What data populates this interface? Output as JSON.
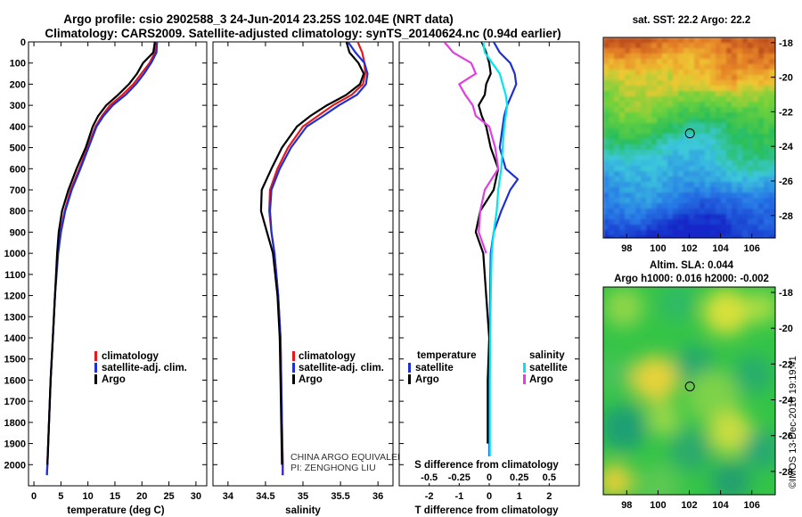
{
  "header": {
    "line1": "Argo profile: csio 2902588_3 24-Jun-2014 23.25S 102.04E (NRT data)",
    "line2": "Climatology: CARS2009. Satellite-adjusted climatology: synTS_20140624.nc (0.94d earlier)"
  },
  "colors": {
    "climatology": "#e31a1c",
    "satellite": "#1f2fd6",
    "argo": "#000000",
    "salinity_sat": "#00e5ee",
    "salinity_argo": "#e040e0"
  },
  "chart_data": [
    {
      "type": "line",
      "name": "temperature",
      "xlabel": "temperature (deg C)",
      "ylabel": "",
      "xlim": [
        -1,
        32
      ],
      "ylim": [
        2100,
        0
      ],
      "xticks": [
        0,
        5,
        10,
        15,
        20,
        25,
        30
      ],
      "yticks": [
        0,
        100,
        200,
        300,
        400,
        500,
        600,
        700,
        800,
        900,
        1000,
        1100,
        1200,
        1300,
        1400,
        1500,
        1600,
        1700,
        1800,
        1900,
        2000
      ],
      "legend": [
        "climatology",
        "satellite-adj. clim.",
        "Argo"
      ],
      "legend_position": "lower-left",
      "series": [
        {
          "name": "climatology",
          "color": "#e31a1c",
          "depth": [
            0,
            50,
            100,
            150,
            200,
            250,
            300,
            350,
            400,
            500,
            600,
            700,
            800,
            900,
            1000,
            1200,
            1400,
            1600,
            1800,
            2000,
            2050
          ],
          "values": [
            22.6,
            22.4,
            21.4,
            19.9,
            18.4,
            16.4,
            14.1,
            12.6,
            11.4,
            9.9,
            8.4,
            6.8,
            5.7,
            4.9,
            4.4,
            3.9,
            3.5,
            3.1,
            2.8,
            2.5,
            2.4
          ]
        },
        {
          "name": "satellite-adj. clim.",
          "color": "#1f2fd6",
          "depth": [
            0,
            50,
            100,
            150,
            200,
            250,
            300,
            350,
            400,
            500,
            600,
            700,
            800,
            900,
            1000,
            1200,
            1400,
            1600,
            1800,
            2000,
            2050
          ],
          "values": [
            22.8,
            22.7,
            21.7,
            20.4,
            18.9,
            17.0,
            14.6,
            12.9,
            11.6,
            10.1,
            8.6,
            7.0,
            5.8,
            5.0,
            4.5,
            3.9,
            3.5,
            3.1,
            2.8,
            2.5,
            2.4
          ]
        },
        {
          "name": "Argo",
          "color": "#000000",
          "depth": [
            0,
            50,
            100,
            150,
            200,
            250,
            300,
            350,
            400,
            500,
            600,
            700,
            800,
            900,
            1000,
            1200,
            1400,
            1600,
            1800,
            2000
          ],
          "values": [
            22.4,
            22.1,
            20.2,
            19.1,
            17.6,
            15.6,
            13.4,
            11.9,
            10.9,
            9.6,
            7.9,
            6.4,
            5.2,
            4.6,
            4.3,
            3.9,
            3.5,
            3.1,
            2.8,
            2.5
          ]
        }
      ]
    },
    {
      "type": "line",
      "name": "salinity",
      "xlabel": "salinity",
      "xlim": [
        33.8,
        36.2
      ],
      "ylim": [
        2100,
        0
      ],
      "xticks": [
        34,
        34.5,
        35,
        35.5,
        36
      ],
      "legend": [
        "climatology",
        "satellite-adj. clim.",
        "Argo"
      ],
      "legend_position": "lower-right",
      "series": [
        {
          "name": "climatology",
          "color": "#e31a1c",
          "depth": [
            0,
            50,
            100,
            150,
            200,
            250,
            300,
            350,
            400,
            500,
            600,
            700,
            800,
            900,
            1000,
            1200,
            1400,
            1600,
            1800,
            2000,
            2050
          ],
          "values": [
            35.73,
            35.79,
            35.82,
            35.83,
            35.8,
            35.65,
            35.4,
            35.2,
            35.0,
            34.8,
            34.66,
            34.56,
            34.55,
            34.58,
            34.62,
            34.67,
            34.7,
            34.71,
            34.72,
            34.73,
            34.73
          ]
        },
        {
          "name": "satellite-adj. clim.",
          "color": "#1f2fd6",
          "depth": [
            0,
            50,
            100,
            150,
            200,
            250,
            300,
            350,
            400,
            500,
            600,
            700,
            800,
            900,
            1000,
            1200,
            1400,
            1600,
            1800,
            2000,
            2050
          ],
          "values": [
            35.6,
            35.7,
            35.82,
            35.86,
            35.84,
            35.72,
            35.48,
            35.27,
            35.05,
            34.84,
            34.69,
            34.58,
            34.56,
            34.58,
            34.62,
            34.67,
            34.7,
            34.71,
            34.72,
            34.73,
            34.73
          ]
        },
        {
          "name": "Argo",
          "color": "#000000",
          "depth": [
            0,
            50,
            100,
            150,
            200,
            250,
            300,
            350,
            400,
            500,
            600,
            700,
            800,
            900,
            1000,
            1200,
            1400,
            1600,
            1800,
            2000
          ],
          "values": [
            35.58,
            35.62,
            35.74,
            35.81,
            35.76,
            35.58,
            35.32,
            35.1,
            34.92,
            34.72,
            34.58,
            34.45,
            34.44,
            34.52,
            34.6,
            34.66,
            34.69,
            34.7,
            34.71,
            34.72
          ]
        }
      ]
    },
    {
      "type": "line",
      "name": "difference",
      "xlabel": "T difference from climatology",
      "xlabel_top": "S difference from climatology",
      "xlim": [
        -3,
        3
      ],
      "ylim": [
        2100,
        0
      ],
      "xticks": [
        -2,
        -1,
        0,
        1,
        2
      ],
      "xtick_labels_top": [
        "-0.5",
        "-0.25",
        "0",
        "0.25",
        "0.5"
      ],
      "legend_temperature_title": "temperature",
      "legend_salinity_title": "salinity",
      "legend_temperature": [
        "satellite",
        "Argo"
      ],
      "legend_salinity": [
        "satellite",
        "Argo"
      ],
      "legend_position": "lower-center",
      "series": [
        {
          "name": "T satellite",
          "color": "#1f2fd6",
          "depth": [
            0,
            50,
            100,
            150,
            200,
            250,
            300,
            350,
            400,
            500,
            600,
            650,
            700,
            800,
            900,
            1000,
            1200,
            1400,
            1600,
            1800,
            2000
          ],
          "values": [
            0.15,
            0.35,
            0.7,
            0.85,
            0.9,
            0.75,
            0.6,
            0.5,
            0.45,
            0.35,
            0.55,
            0.95,
            0.7,
            0.4,
            0.15,
            0.05,
            0.03,
            0.02,
            0.0,
            0.0,
            0.0
          ]
        },
        {
          "name": "T Argo",
          "color": "#000000",
          "depth": [
            0,
            50,
            100,
            150,
            200,
            250,
            300,
            350,
            400,
            500,
            600,
            700,
            800,
            900,
            1000,
            1200,
            1400,
            1600,
            1800,
            1900
          ],
          "values": [
            -0.25,
            -0.1,
            0.0,
            0.05,
            -0.1,
            -0.15,
            -0.35,
            -0.25,
            -0.1,
            0.05,
            0.3,
            0.15,
            -0.3,
            -0.45,
            -0.2,
            -0.1,
            0.0,
            -0.05,
            -0.05,
            -0.05
          ]
        },
        {
          "name": "S satellite",
          "color": "#00e5ee",
          "depth": [
            0,
            50,
            100,
            150,
            200,
            250,
            300,
            400,
            500,
            600,
            700,
            800,
            900,
            1000,
            1200,
            1400,
            1600,
            1800,
            2000
          ],
          "values": [
            -0.2,
            -0.15,
            0.1,
            0.35,
            0.45,
            0.55,
            0.6,
            0.5,
            0.45,
            0.4,
            0.3,
            0.25,
            0.15,
            0.08,
            0.05,
            0.03,
            0.02,
            0.02,
            0.02
          ]
        },
        {
          "name": "S Argo",
          "color": "#e040e0",
          "depth": [
            0,
            50,
            100,
            150,
            200,
            250,
            300,
            350,
            400,
            500,
            600,
            700,
            800,
            900,
            1000
          ],
          "values": [
            -1.5,
            -1.2,
            -0.6,
            -0.45,
            -1.0,
            -0.8,
            -0.55,
            -0.45,
            0.0,
            0.2,
            0.3,
            -0.15,
            -0.3,
            -0.35,
            -0.1
          ]
        }
      ]
    },
    {
      "type": "heatmap",
      "name": "sst_map",
      "title": "sat. SST: 22.2 Argo: 22.2",
      "xlim": [
        96.5,
        107.5
      ],
      "ylim": [
        -29.3,
        -17.7
      ],
      "xticks": [
        98,
        100,
        102,
        104,
        106
      ],
      "yticks": [
        -18,
        -20,
        -22,
        -24,
        -26,
        -28
      ],
      "marker": [
        102.04,
        -23.25
      ]
    },
    {
      "type": "heatmap",
      "name": "sla_map",
      "title": "Altim. SLA: 0.044",
      "subtitle": "Argo h1000: 0.016 h2000: -0.002",
      "xlim": [
        96.5,
        107.5
      ],
      "ylim": [
        -29.3,
        -17.7
      ],
      "xticks": [
        98,
        100,
        102,
        104,
        106
      ],
      "yticks": [
        -18,
        -20,
        -22,
        -24,
        -26,
        -28
      ],
      "marker": [
        102.04,
        -23.25
      ]
    }
  ],
  "watermark": {
    "line1": "CHINA ARGO EQUIVALENT",
    "line2": "PI: ZENGHONG LIU"
  },
  "footer_stamp": "©IMOS 13-Dec-2018 19:19:41"
}
